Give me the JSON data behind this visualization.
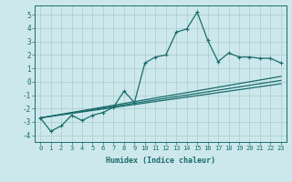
{
  "xlabel": "Humidex (Indice chaleur)",
  "background_color": "#cce8ec",
  "grid_color": "#aacccc",
  "line_color": "#1a6b6b",
  "xlim": [
    -0.5,
    23.5
  ],
  "ylim": [
    -4.5,
    5.7
  ],
  "yticks": [
    -4,
    -3,
    -2,
    -1,
    0,
    1,
    2,
    3,
    4,
    5
  ],
  "xticks": [
    0,
    1,
    2,
    3,
    4,
    5,
    6,
    7,
    8,
    9,
    10,
    11,
    12,
    13,
    14,
    15,
    16,
    17,
    18,
    19,
    20,
    21,
    22,
    23
  ],
  "line1_x": [
    0,
    1,
    2,
    3,
    4,
    5,
    6,
    7,
    8,
    9,
    10,
    11,
    12,
    13,
    14,
    15,
    16,
    17,
    18,
    19,
    20,
    21,
    22,
    23
  ],
  "line1_y": [
    -2.7,
    -3.7,
    -3.3,
    -2.5,
    -2.9,
    -2.5,
    -2.3,
    -1.9,
    -0.7,
    -1.55,
    1.4,
    1.85,
    2.0,
    3.7,
    3.95,
    5.2,
    3.1,
    1.5,
    2.15,
    1.85,
    1.85,
    1.75,
    1.75,
    1.4
  ],
  "line2_x": [
    0,
    23
  ],
  "line2_y": [
    -2.7,
    0.1
  ],
  "line3_x": [
    0,
    23
  ],
  "line3_y": [
    -2.7,
    0.4
  ],
  "line4_x": [
    0,
    23
  ],
  "line4_y": [
    -2.7,
    -0.15
  ],
  "marker_size": 3,
  "line_width": 0.9
}
